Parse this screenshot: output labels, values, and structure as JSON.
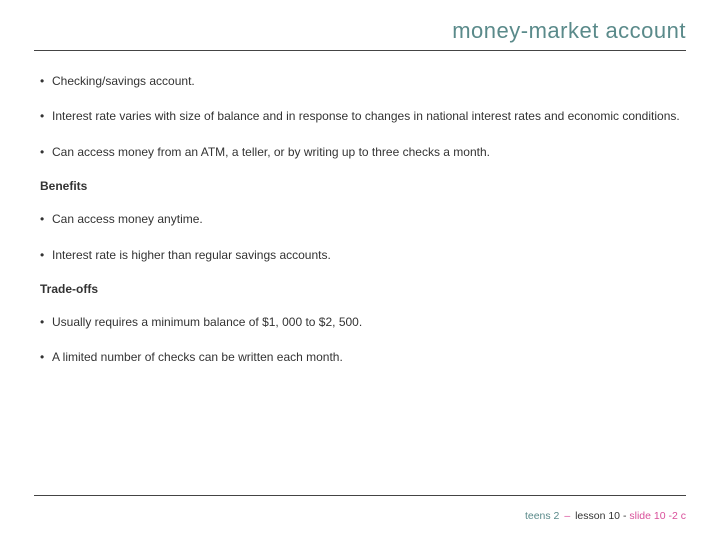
{
  "colors": {
    "title_color": "#5a8a8a",
    "body_color": "#333333",
    "footer_label": "#5a8a8a",
    "footer_dash": "#d94f9a",
    "footer_lesson": "#333333",
    "footer_slide": "#d94f9a",
    "rule_color": "#444444",
    "background": "#ffffff"
  },
  "typography": {
    "title_fontsize": 22,
    "body_fontsize": 12,
    "footer_fontsize": 10.5,
    "font_family": "Verdana"
  },
  "title": "money-market account",
  "bullets_top": [
    "Checking/savings account.",
    "Interest rate varies with size of balance and in response to changes in national interest rates and economic conditions.",
    "Can access money from an ATM, a teller, or by writing up to three checks a month."
  ],
  "benefits_heading": "Benefits",
  "benefits": [
    "Can access money anytime.",
    "Interest rate is higher than regular savings accounts."
  ],
  "tradeoffs_heading": "Trade-offs",
  "tradeoffs": [
    "Usually requires a minimum balance of $1, 000 to $2, 500.",
    "A limited number of checks can be written each month."
  ],
  "footer": {
    "label": "teens 2",
    "dash": "–",
    "lesson": "lesson 10 -",
    "slide": "slide 10 -2 c"
  }
}
